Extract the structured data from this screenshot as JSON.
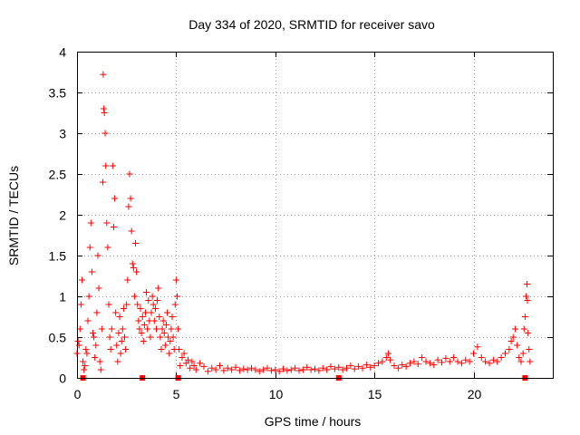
{
  "chart_data": {
    "type": "scatter",
    "title": "Day 334 of 2020, SRMTID for receiver savo",
    "xlabel": "GPS time / hours",
    "ylabel": "SRMTID / TECUs",
    "xlim": [
      0,
      24
    ],
    "ylim": [
      0,
      4
    ],
    "xticks": [
      0,
      5,
      10,
      15,
      20
    ],
    "yticks": [
      0,
      0.5,
      1,
      1.5,
      2,
      2.5,
      3,
      3.5,
      4
    ],
    "xtick_labels": [
      "0",
      "5",
      "10",
      "15",
      "20"
    ],
    "ytick_labels": [
      "0",
      "0.5",
      "1",
      "1.5",
      "2",
      "2.5",
      "3",
      "3.5",
      "4"
    ],
    "grid": true,
    "marker": "+",
    "color": "#ff0000",
    "x_axis_markers": [
      0.3,
      3.3,
      5.1,
      13.2,
      22.6
    ],
    "series": [
      {
        "name": "SRMTID",
        "points": [
          [
            0.0,
            0.3
          ],
          [
            0.05,
            0.45
          ],
          [
            0.1,
            0.4
          ],
          [
            0.15,
            0.6
          ],
          [
            0.2,
            0.9
          ],
          [
            0.25,
            1.2
          ],
          [
            0.3,
            0.2
          ],
          [
            0.35,
            0.1
          ],
          [
            0.4,
            0.15
          ],
          [
            0.45,
            0.35
          ],
          [
            0.5,
            0.3
          ],
          [
            0.55,
            0.7
          ],
          [
            0.6,
            1.0
          ],
          [
            0.65,
            1.6
          ],
          [
            0.7,
            1.9
          ],
          [
            0.75,
            1.3
          ],
          [
            0.8,
            0.55
          ],
          [
            0.85,
            0.5
          ],
          [
            0.9,
            0.25
          ],
          [
            0.95,
            0.4
          ],
          [
            1.0,
            0.8
          ],
          [
            1.05,
            1.5
          ],
          [
            1.1,
            1.1
          ],
          [
            1.15,
            0.2
          ],
          [
            1.2,
            0.1
          ],
          [
            1.25,
            0.6
          ],
          [
            1.3,
            2.4
          ],
          [
            1.32,
            3.72
          ],
          [
            1.35,
            3.3
          ],
          [
            1.38,
            3.25
          ],
          [
            1.42,
            3.0
          ],
          [
            1.45,
            2.6
          ],
          [
            1.5,
            1.9
          ],
          [
            1.55,
            1.6
          ],
          [
            1.6,
            0.9
          ],
          [
            1.65,
            0.5
          ],
          [
            1.7,
            0.35
          ],
          [
            1.75,
            0.6
          ],
          [
            1.8,
            2.6
          ],
          [
            1.85,
            1.85
          ],
          [
            1.9,
            2.2
          ],
          [
            1.95,
            0.8
          ],
          [
            2.0,
            0.4
          ],
          [
            2.05,
            0.2
          ],
          [
            2.1,
            0.55
          ],
          [
            2.15,
            0.75
          ],
          [
            2.2,
            0.3
          ],
          [
            2.25,
            0.45
          ],
          [
            2.3,
            0.6
          ],
          [
            2.35,
            0.85
          ],
          [
            2.4,
            0.5
          ],
          [
            2.45,
            0.35
          ],
          [
            2.5,
            0.9
          ],
          [
            2.55,
            1.2
          ],
          [
            2.6,
            2.1
          ],
          [
            2.65,
            2.5
          ],
          [
            2.7,
            2.2
          ],
          [
            2.75,
            1.8
          ],
          [
            2.8,
            1.4
          ],
          [
            2.85,
            1.35
          ],
          [
            2.9,
            1.0
          ],
          [
            2.95,
            1.65
          ],
          [
            3.0,
            1.3
          ],
          [
            3.05,
            0.9
          ],
          [
            3.1,
            0.7
          ],
          [
            3.15,
            0.6
          ],
          [
            3.2,
            0.85
          ],
          [
            3.25,
            0.55
          ],
          [
            3.3,
            0.75
          ],
          [
            3.35,
            0.45
          ],
          [
            3.4,
            0.65
          ],
          [
            3.45,
            0.8
          ],
          [
            3.5,
            1.05
          ],
          [
            3.55,
            0.6
          ],
          [
            3.6,
            0.95
          ],
          [
            3.65,
            0.7
          ],
          [
            3.7,
            0.5
          ],
          [
            3.75,
            0.8
          ],
          [
            3.8,
            1.0
          ],
          [
            3.85,
            0.9
          ],
          [
            3.9,
            0.7
          ],
          [
            3.95,
            0.85
          ],
          [
            4.0,
            0.6
          ],
          [
            4.05,
            0.95
          ],
          [
            4.1,
            1.1
          ],
          [
            4.15,
            0.75
          ],
          [
            4.2,
            0.5
          ],
          [
            4.25,
            0.35
          ],
          [
            4.3,
            0.6
          ],
          [
            4.35,
            0.7
          ],
          [
            4.4,
            0.55
          ],
          [
            4.45,
            0.4
          ],
          [
            4.5,
            0.65
          ],
          [
            4.55,
            0.8
          ],
          [
            4.6,
            0.5
          ],
          [
            4.65,
            0.3
          ],
          [
            4.7,
            0.45
          ],
          [
            4.75,
            0.6
          ],
          [
            4.8,
            0.75
          ],
          [
            4.85,
            0.5
          ],
          [
            4.9,
            0.35
          ],
          [
            4.95,
            0.9
          ],
          [
            5.0,
            1.2
          ],
          [
            5.05,
            1.0
          ],
          [
            5.1,
            0.6
          ],
          [
            5.15,
            0.35
          ],
          [
            5.2,
            0.15
          ],
          [
            5.3,
            0.25
          ],
          [
            5.4,
            0.3
          ],
          [
            5.5,
            0.18
          ],
          [
            5.6,
            0.22
          ],
          [
            5.7,
            0.12
          ],
          [
            5.8,
            0.2
          ],
          [
            5.9,
            0.15
          ],
          [
            6.0,
            0.1
          ],
          [
            6.2,
            0.18
          ],
          [
            6.4,
            0.14
          ],
          [
            6.6,
            0.08
          ],
          [
            6.8,
            0.12
          ],
          [
            7.0,
            0.1
          ],
          [
            7.2,
            0.15
          ],
          [
            7.4,
            0.09
          ],
          [
            7.6,
            0.12
          ],
          [
            7.8,
            0.1
          ],
          [
            8.0,
            0.13
          ],
          [
            8.2,
            0.09
          ],
          [
            8.4,
            0.11
          ],
          [
            8.6,
            0.1
          ],
          [
            8.8,
            0.12
          ],
          [
            9.0,
            0.1
          ],
          [
            9.2,
            0.08
          ],
          [
            9.4,
            0.1
          ],
          [
            9.6,
            0.12
          ],
          [
            9.8,
            0.09
          ],
          [
            10.0,
            0.1
          ],
          [
            10.2,
            0.08
          ],
          [
            10.4,
            0.11
          ],
          [
            10.6,
            0.09
          ],
          [
            10.8,
            0.1
          ],
          [
            11.0,
            0.12
          ],
          [
            11.2,
            0.09
          ],
          [
            11.4,
            0.1
          ],
          [
            11.6,
            0.13
          ],
          [
            11.8,
            0.1
          ],
          [
            12.0,
            0.11
          ],
          [
            12.2,
            0.09
          ],
          [
            12.4,
            0.12
          ],
          [
            12.6,
            0.1
          ],
          [
            12.8,
            0.14
          ],
          [
            13.0,
            0.11
          ],
          [
            13.2,
            0.13
          ],
          [
            13.4,
            0.1
          ],
          [
            13.6,
            0.12
          ],
          [
            13.8,
            0.15
          ],
          [
            14.0,
            0.11
          ],
          [
            14.2,
            0.14
          ],
          [
            14.4,
            0.12
          ],
          [
            14.6,
            0.16
          ],
          [
            14.8,
            0.13
          ],
          [
            15.0,
            0.15
          ],
          [
            15.2,
            0.18
          ],
          [
            15.4,
            0.2
          ],
          [
            15.6,
            0.25
          ],
          [
            15.7,
            0.3
          ],
          [
            15.8,
            0.22
          ],
          [
            16.0,
            0.15
          ],
          [
            16.2,
            0.12
          ],
          [
            16.4,
            0.16
          ],
          [
            16.6,
            0.14
          ],
          [
            16.8,
            0.18
          ],
          [
            17.0,
            0.2
          ],
          [
            17.2,
            0.17
          ],
          [
            17.4,
            0.25
          ],
          [
            17.6,
            0.2
          ],
          [
            17.8,
            0.18
          ],
          [
            18.0,
            0.16
          ],
          [
            18.2,
            0.22
          ],
          [
            18.4,
            0.19
          ],
          [
            18.6,
            0.24
          ],
          [
            18.8,
            0.2
          ],
          [
            19.0,
            0.25
          ],
          [
            19.2,
            0.2
          ],
          [
            19.4,
            0.18
          ],
          [
            19.6,
            0.22
          ],
          [
            19.8,
            0.2
          ],
          [
            20.0,
            0.3
          ],
          [
            20.2,
            0.38
          ],
          [
            20.4,
            0.25
          ],
          [
            20.6,
            0.2
          ],
          [
            20.8,
            0.18
          ],
          [
            21.0,
            0.22
          ],
          [
            21.2,
            0.2
          ],
          [
            21.4,
            0.25
          ],
          [
            21.6,
            0.3
          ],
          [
            21.8,
            0.35
          ],
          [
            21.9,
            0.45
          ],
          [
            22.0,
            0.5
          ],
          [
            22.1,
            0.6
          ],
          [
            22.2,
            0.4
          ],
          [
            22.3,
            0.25
          ],
          [
            22.4,
            0.2
          ],
          [
            22.5,
            0.3
          ],
          [
            22.55,
            0.6
          ],
          [
            22.6,
            0.75
          ],
          [
            22.65,
            1.0
          ],
          [
            22.7,
            1.15
          ],
          [
            22.72,
            0.95
          ],
          [
            22.75,
            0.55
          ],
          [
            22.8,
            0.35
          ],
          [
            22.85,
            0.2
          ]
        ]
      }
    ]
  }
}
